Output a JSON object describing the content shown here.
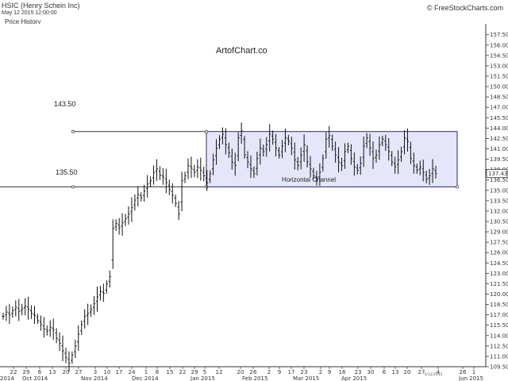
{
  "header": {
    "symbol": "HSIC (Henry Schein Inc)",
    "datetime": "May 12 2015 12:00:00",
    "subtitle": "Price History",
    "source": "© FreeStockCharts.com"
  },
  "chart_data": {
    "type": "ohlc",
    "title": "HSIC (Henry Schein Inc)",
    "watermark": "ArtofChart.co",
    "ylim": [
      109.5,
      158.5
    ],
    "y_ticks": [
      109.5,
      111.0,
      112.5,
      114.0,
      115.5,
      117.0,
      118.5,
      120.0,
      121.5,
      123.0,
      124.5,
      126.0,
      127.5,
      129.0,
      130.5,
      132.0,
      133.5,
      135.0,
      136.5,
      138.0,
      139.5,
      141.0,
      142.5,
      144.0,
      145.5,
      147.0,
      148.5,
      150.0,
      151.5,
      153.0,
      154.5,
      156.0,
      157.5
    ],
    "last_price": "137.43",
    "x_day_labels": [
      "22",
      "29",
      "6",
      "13",
      "20",
      "27",
      "3",
      "10",
      "17",
      "24",
      "1",
      "8",
      "15",
      "22",
      "29",
      "5",
      "12",
      "20",
      "26",
      "2",
      "9",
      "17",
      "23",
      "2",
      "9",
      "16",
      "23",
      "30",
      "6",
      "13",
      "20",
      "27",
      "4",
      "26",
      "1"
    ],
    "x_day_label_marker": "5/12/2015",
    "x_month_labels": [
      "2014",
      "Oct 2014",
      "Nov 2014",
      "Dec 2014",
      "Jan 2015",
      "Feb 2015",
      "Mar 2015",
      "Apr 2015",
      "Jun 2015"
    ],
    "annotations": {
      "upper_level": "143.50",
      "lower_level": "135.50",
      "channel_label": "Horizontal Channel",
      "channel_top": 143.5,
      "channel_bottom": 135.5
    },
    "bars_closes": [
      116.8,
      117.4,
      117.0,
      117.6,
      118.1,
      117.5,
      117.9,
      118.3,
      117.8,
      117.2,
      116.9,
      116.2,
      115.6,
      115.0,
      114.6,
      115.2,
      114.8,
      113.6,
      112.9,
      111.8,
      110.8,
      110.0,
      111.2,
      112.5,
      114.2,
      115.6,
      116.8,
      117.2,
      117.8,
      118.6,
      119.6,
      120.4,
      120.1,
      121.5,
      122.5,
      129.5,
      130.2,
      129.6,
      130.3,
      130.9,
      131.6,
      132.5,
      133.6,
      134.4,
      133.9,
      134.9,
      135.9,
      136.4,
      137.6,
      138.1,
      137.2,
      136.9,
      136.1,
      135.1,
      134.3,
      133.1,
      131.6,
      136.4,
      137.1,
      138.6,
      138.2,
      137.6,
      138.4,
      137.9,
      137.1,
      136.1,
      137.4,
      139.4,
      141.1,
      142.4,
      143.1,
      141.6,
      140.4,
      139.1,
      138.6,
      142.6,
      143.6,
      140.1,
      139.1,
      138.1,
      137.4,
      139.6,
      141.1,
      140.6,
      141.6,
      143.1,
      142.4,
      141.1,
      140.1,
      141.4,
      142.6,
      142.1,
      141.1,
      139.4,
      138.6,
      140.1,
      141.6,
      139.1,
      138.1,
      137.1,
      136.6,
      137.6,
      139.6,
      142.4,
      142.9,
      141.4,
      140.1,
      139.1,
      138.6,
      140.6,
      141.4,
      139.6,
      138.4,
      137.9,
      138.9,
      141.4,
      142.6,
      141.1,
      139.6,
      140.1,
      141.6,
      142.4,
      141.6,
      140.6,
      139.1,
      138.4,
      139.4,
      140.6,
      142.6,
      142.1,
      139.6,
      138.6,
      137.9,
      138.4,
      137.6,
      136.6,
      137.1,
      138.1,
      137.4
    ]
  }
}
